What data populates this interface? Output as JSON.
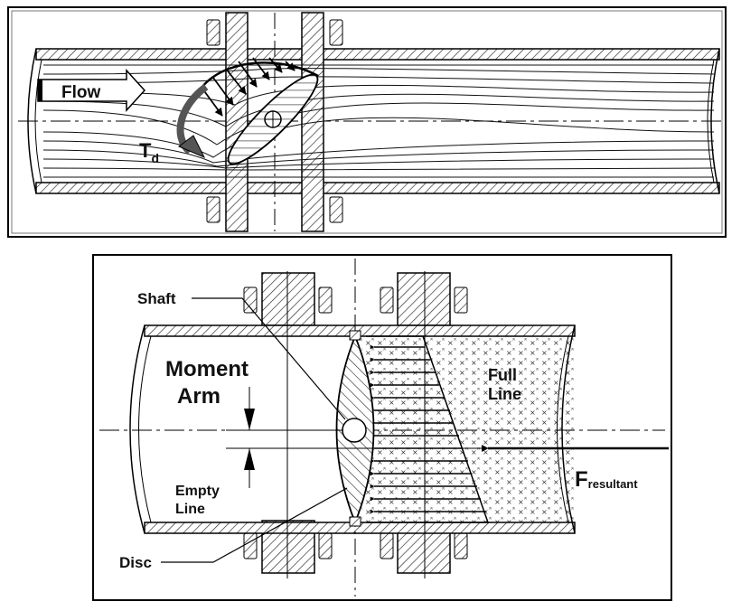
{
  "top_diagram": {
    "flow_label": "Flow",
    "torque_label": "T",
    "torque_subscript": "d"
  },
  "bottom_diagram": {
    "shaft_label": "Shaft",
    "moment_label_line1": "Moment",
    "moment_label_line2": "Arm",
    "full_line_1": "Full",
    "full_line_2": "Line",
    "empty_line_1": "Empty",
    "empty_line_2": "Line",
    "disc_label": "Disc",
    "force_label": "F",
    "force_subscript": "resultant"
  }
}
